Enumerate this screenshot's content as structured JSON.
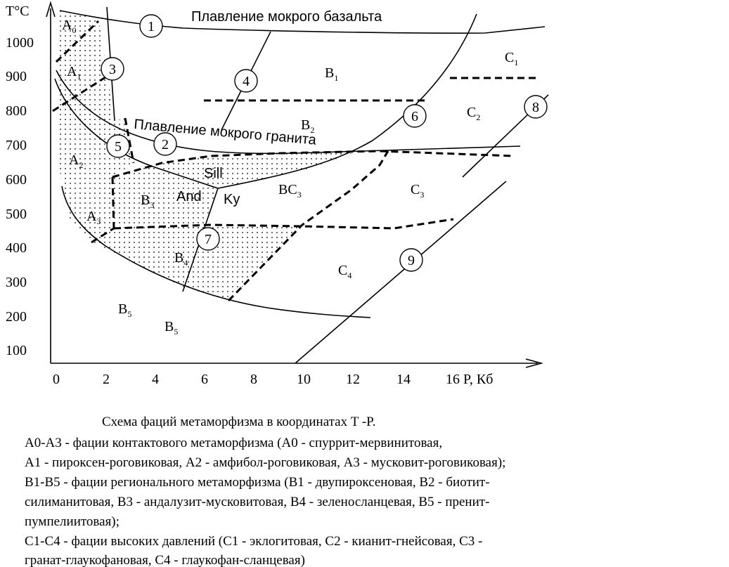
{
  "axes": {
    "y_title": "T°C",
    "y_ticks": [
      "1000",
      "900",
      "800",
      "700",
      "600",
      "500",
      "400",
      "300",
      "200",
      "100"
    ],
    "x_ticks": [
      "0",
      "2",
      "4",
      "6",
      "8",
      "10",
      "12",
      "14",
      "16 P, Кб"
    ]
  },
  "curve_numbers": [
    "1",
    "2",
    "3",
    "4",
    "5",
    "6",
    "7",
    "8",
    "9"
  ],
  "curve_labels": [
    "Плавление мокрого базальта",
    "Плавление мокрого гранита"
  ],
  "minerals": [
    "Sill",
    "And",
    "Ky"
  ],
  "regions": [
    {
      "letter": "A",
      "sub": "0"
    },
    {
      "letter": "A",
      "sub": "1"
    },
    {
      "letter": "A",
      "sub": "2"
    },
    {
      "letter": "A",
      "sub": "3"
    },
    {
      "letter": "B",
      "sub": "1"
    },
    {
      "letter": "B",
      "sub": "2"
    },
    {
      "letter": "B",
      "sub": "3"
    },
    {
      "letter": "B",
      "sub": "4"
    },
    {
      "letter": "B",
      "sub": "5"
    },
    {
      "letter": "B",
      "sub": "5"
    },
    {
      "letter": "BC",
      "sub": "3"
    },
    {
      "letter": "C",
      "sub": "1"
    },
    {
      "letter": "C",
      "sub": "2"
    },
    {
      "letter": "C",
      "sub": "3"
    },
    {
      "letter": "C",
      "sub": "4"
    }
  ],
  "caption": {
    "title": "Схема фаций метаморфизма в координатах T   -P.",
    "lines": [
      "A0-A3 - фации контактового метаморфизма (A0 - спуррит-мервинитовая,",
      "A1 - пироксен-роговиковая, A2 - амфибол-роговиковая, A3 - мусковит-роговиковая);",
      "B1-B5 - фации регионального метаморфизма (B1 - двупироксеновая, B2 - биотит-",
      "силиманитовая, B3 - андалузит-мусковитовая, B4 - зеленосланцевая, B5 - пренит-",
      "пумпелиитовая);",
      "C1-C4 - фации высоких давлений (C1 - эклогитовая, C2 - кианит-гнейсовая, C3 -",
      "гранат-глаукофановая, C4 - глаукофан-сланцевая)"
    ]
  }
}
